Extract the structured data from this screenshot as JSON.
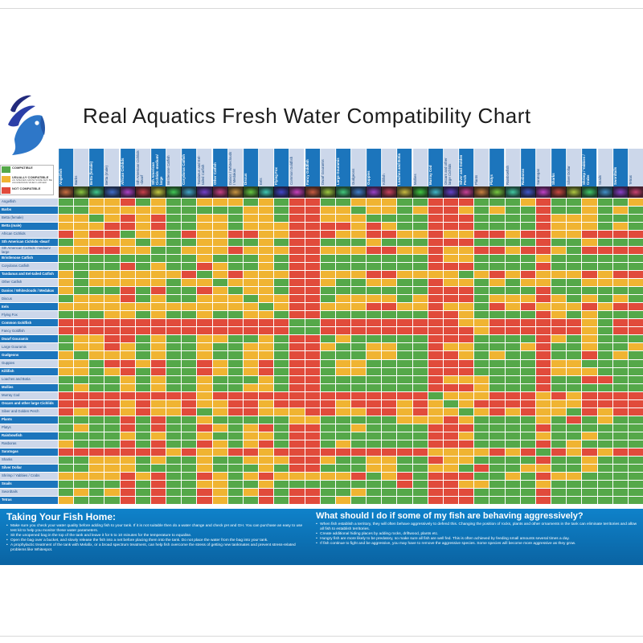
{
  "title": "Real Aquatics Fresh Water Compatibility Chart",
  "legend": {
    "items": [
      {
        "code": "G",
        "label": "COMPATIBLE",
        "note": ""
      },
      {
        "code": "Y",
        "label": "USUALLY COMPATIBLE",
        "note": "AS SPECIES GROW SOME MAY BE AGGRESSIVE WHEN LARGER"
      },
      {
        "code": "R",
        "label": "NOT COMPATIBLE",
        "note": ""
      }
    ]
  },
  "chart_data": {
    "type": "heatmap",
    "title": "Real Aquatics Fresh Water Compatibility Chart",
    "categories": [
      "Angelfish",
      "Barbs",
      "Betta (female)",
      "Betta (male)",
      "African Cichlids",
      "Sth American Cichlids -dwarf",
      "Sth American Cichlids -medium/ large",
      "Bristlenose Catfish",
      "Corydoras Catfish",
      "Tandanus and Eel-tailed Catfish",
      "Other Catfish",
      "Danios / Whiteclouds / Medakas",
      "Discus",
      "Eels",
      "Flying Fox",
      "Common Goldfish",
      "Fancy Goldfish",
      "Dwarf Gouramis",
      "Large Gouramis",
      "Gudgeons",
      "Guppies",
      "Killifish",
      "Loaches and Botia",
      "Mollies",
      "Murray Cod",
      "Oscars and other large Cichlids",
      "Silver and Golden Perch",
      "Plants",
      "Platys",
      "Rainbowfish",
      "Rasboras",
      "Saratogas",
      "Sharks",
      "Silver Dollar",
      "Shrimp / Yabbies / Crabs",
      "Snails",
      "Swordtails",
      "Tetras"
    ],
    "matrix_encoding": {
      "G": "COMPATIBLE",
      "Y": "USUALLY COMPATIBLE",
      "R": "NOT COMPATIBLE"
    },
    "colors": {
      "G": "#55a849",
      "Y": "#f0b432",
      "R": "#e14b3b"
    },
    "matrix": [
      "GGYYRGYGGYYYGYGRRGGYYYGGRRRGGGYRGGYGGY",
      "GGYYYYYGGGGGYYGRRYYGYYGYRRYGYGGRGGYGYG",
      "YYGYRYRGGYYGYYGRRYYYGGGGRRRGGGGRYYYGGG",
      "YYYRRYRGGYYGYYYRRRRYRYGGRRRGGGGRYYYGYG",
      "RYRRGYYGRYYRRYYRRRYYRRYYRYYRRYRRYYRRRR",
      "GYYYYGYGGYYGGYGRRGGGYGGGRRRGGGGRGGYGGG",
      "YYRRYYGGYYYRYYYRRYYYRRYYRYYRRYRRYGRRRR",
      "GGGGGGGGGYGGGYGRRGGGGGGGRYYGGGGYGGGGGG",
      "GGGGRGYGGRYGGYGRRGGGGGGGRRRGGGGRGGGGGG",
      "YGYYYYYYRGYRYYYRRYYYRRYYYYGYRYRYYYRYRR",
      "YGYYYYYGYYGYYYGRRYGGYYGGRYYGYGYYGGYYYY",
      "YGGGRGRGGRYGYYGRRGGGGGGGRRRGGGGRGGGGGG",
      "GYYYRGYGGYYYGYYRRGYYYYGYRRRGYYYRYGYGYG",
      "YYYYYYYYYYYYYGYRRYYYRRYYRYYGRYRYYYRYRR",
      "GGGYYGYGGYGGYYGRRGGGGGGGRRYGGGGRYGYGGG",
      "RRRRRRRRRRRRRRRGGRRRRRRRRRYYRRRRRRYGRR",
      "RRRRRRRRRRRRRRRGGRRRRRRRRRRYRRRRRRYGRR",
      "GYYRRGYGGYYGGYGRRGYGGGGGRRRGGGGRYGYGGG",
      "GYYRYGYGGYGGYYGRRYGGYYGGRYYGGGYRGGYGGY",
      "YGYYYGYGGYGGYYGRRGGGYYGGRRYGYGGRGGRGYG",
      "YYGRRYRGGRYGYRGRRGYYGGGGRRRGGGGRYYGGGG",
      "YYGYRGRGGRYGYRGRRGYYGGGGRRRGGGGRYYYGGG",
      "GGGGYGYGGYGGGYGRRGGGGGGGRYYYGGGRGGRRGG",
      "GYGGYGYGGYGGYYGRRGGGGGGGRRRYGGGRGGGGGG",
      "RRRRRRRRRYRRRRRRRRRRRRRRGYYYRRRYRYRRRR",
      "RRRRYRYYRYYRRYRRRRYRRRYRYGYRRRRYYYRRRR",
      "RYRRYRYYRGYRRYYYRRYYRRYRYYGYRYRYYGRYRR",
      "GGGGRGRGGYGGGGGYYGGGGGYYYRYGGGGYGRGYGG",
      "GYGGRGRGGRYGYRGRRGGYGGGGRRRGGGGRGGGGGG",
      "GGGGYGYGGYGGYYGRRGGGGGGGRRYGGGGYGGYGGG",
      "YGGGRGRGGRYGYRGRRGYGGGGGRRRGGGGRGYGGGG",
      "RRRRRRRYRYYRRYRRRRRRRRRRYYYYRYRGRYRYRR",
      "GGYYYGYGGYGGYYYRRYGGYYGGRYYGGGGRGGYGGG",
      "GGYYYGGGGYGGGYGRRGGGYYGGYYGRGGYYGGYGGG",
      "YYYYRYRGGRYGYRYYYYYRGYRGRRRGGYGRYYGGGG",
      "GGGGRGRGGYYGGYGGGGGGGGRGRRYYGGGYGGGGGG",
      "GYGYRGRGGRYGYRGRRGGYGGGGRRRGGGGRGGGGGG",
      "YGGGRGRGGRYGGRGRRGYGGGGGRRRGGGGRGGGGGG"
    ]
  },
  "footer": {
    "left": {
      "title": "Taking Your Fish Home:",
      "bullets": [
        "Make sure you check your water quality before adding fish to your tank.  If it is not suitable then do a water change and check pH and GH. You can purchase an easy to use test kit to help you monitor these water parameters.",
        "Sit the unopened bag in the top of the tank and leave it for 5 to 10 minutes for the temperature to equalise.",
        "Open the bag over a bucket, and slowly release the fish into a net before placing them into the tank.  Do not place the water from the bag into your tank.",
        "A prophylactic treatment of the tank with Melafix, or a broad spectrum treatment, can help fish overcome the stress of getting new tankmates and prevent stress-related problems like Whitespot."
      ]
    },
    "right": {
      "title": "What should I do if some of my fish are behaving aggressively?",
      "bullets": [
        "When fish establish a territory, they will often behave aggressively to defend this. Changing the position of rocks, plants and other ornaments in the tank can eliminate territories and allow all fish to establish territories.",
        "Create additional hiding places by adding rocks, driftwood, plants etc.",
        "Hungry fish are more likely to be predatory, so make sure all fish are well fed.  This is often achieved by feeding small amounts several times a day.",
        "If fish continue to fight and be aggressive, you may have to remove the aggressive species. Some species will become more aggressive as they grow."
      ]
    }
  }
}
